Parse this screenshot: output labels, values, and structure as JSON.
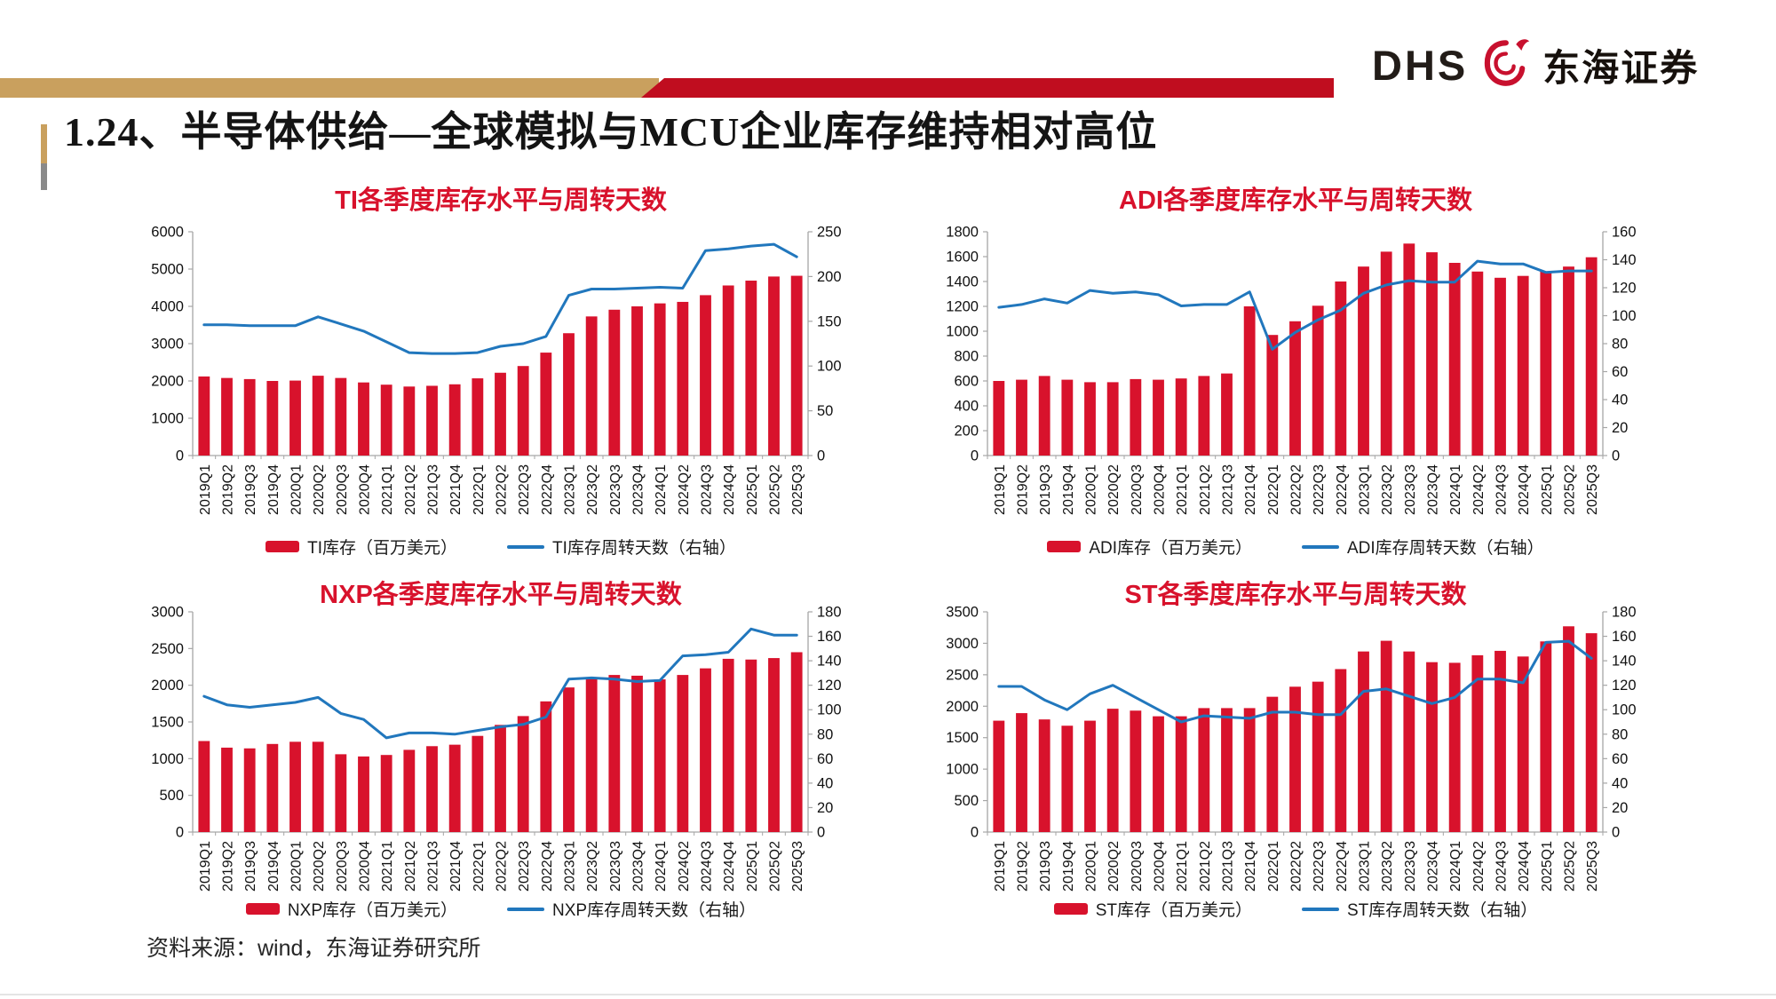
{
  "slide": {
    "title": "1.24、半导体供给—全球模拟与MCU企业库存维持相对高位",
    "footer": "资料来源：wind，东海证券研究所"
  },
  "logo": {
    "dhs": "DHS",
    "cn": "东海证券"
  },
  "colors": {
    "bar_red": "#D8122C",
    "line_blue": "#2177BD",
    "chart_title_red": "#D8122C",
    "band_gold": "#C9A05E",
    "band_red": "#C00D1F",
    "accent_gray": "#8A8A8A",
    "axis_gray": "#A6A6A6",
    "dragon_red": "#C8102E"
  },
  "categories": [
    "2019Q1",
    "2019Q2",
    "2019Q3",
    "2019Q4",
    "2020Q1",
    "2020Q2",
    "2020Q3",
    "2020Q4",
    "2021Q1",
    "2021Q2",
    "2021Q3",
    "2021Q4",
    "2022Q1",
    "2022Q2",
    "2022Q3",
    "2022Q4",
    "2023Q1",
    "2023Q2",
    "2023Q3",
    "2023Q4",
    "2024Q1",
    "2024Q2",
    "2024Q3",
    "2024Q4",
    "2025Q1",
    "2025Q2",
    "2025Q3"
  ],
  "chart_data": [
    {
      "name": "TI",
      "type": "bar+line",
      "title": "TI各季度库存水平与周转天数",
      "legend": {
        "bar": "TI库存（百万美元）",
        "line": "TI库存周转天数（右轴）"
      },
      "left_axis": {
        "min": 0,
        "max": 6000,
        "step": 1000
      },
      "right_axis": {
        "min": 0,
        "max": 250,
        "step": 50
      },
      "bars": [
        2120,
        2080,
        2050,
        2000,
        2010,
        2140,
        2080,
        1960,
        1900,
        1850,
        1870,
        1910,
        2070,
        2220,
        2400,
        2760,
        3280,
        3730,
        3910,
        4000,
        4080,
        4120,
        4300,
        4560,
        4690,
        4800,
        4820
      ],
      "line": [
        146,
        146,
        145,
        145,
        145,
        155,
        147,
        139,
        127,
        115,
        114,
        114,
        115,
        122,
        125,
        133,
        179,
        186,
        186,
        187,
        188,
        187,
        229,
        231,
        234,
        236,
        222
      ]
    },
    {
      "name": "ADI",
      "type": "bar+line",
      "title": "ADI各季度库存水平与周转天数",
      "legend": {
        "bar": "ADI库存（百万美元）",
        "line": "ADI库存周转天数（右轴）"
      },
      "left_axis": {
        "min": 0,
        "max": 1800,
        "step": 200
      },
      "right_axis": {
        "min": 0,
        "max": 160,
        "step": 20
      },
      "bars": [
        600,
        610,
        640,
        610,
        590,
        590,
        615,
        610,
        620,
        640,
        660,
        1200,
        970,
        1080,
        1205,
        1400,
        1520,
        1640,
        1705,
        1635,
        1550,
        1480,
        1430,
        1445,
        1480,
        1520,
        1595
      ],
      "line": [
        106,
        108,
        112,
        109,
        118,
        116,
        117,
        115,
        107,
        108,
        108,
        117,
        76,
        88,
        97,
        104,
        116,
        122,
        125,
        124,
        124,
        139,
        137,
        137,
        131,
        132,
        132
      ]
    },
    {
      "name": "NXP",
      "type": "bar+line",
      "title": "NXP各季度库存水平与周转天数",
      "legend": {
        "bar": "NXP库存（百万美元）",
        "line": "NXP库存周转天数（右轴）"
      },
      "left_axis": {
        "min": 0,
        "max": 3000,
        "step": 500
      },
      "right_axis": {
        "min": 0,
        "max": 180,
        "step": 20
      },
      "bars": [
        1240,
        1150,
        1140,
        1200,
        1230,
        1230,
        1060,
        1030,
        1050,
        1120,
        1170,
        1190,
        1310,
        1460,
        1580,
        1780,
        1970,
        2100,
        2140,
        2130,
        2080,
        2140,
        2230,
        2360,
        2350,
        2370,
        2450
      ],
      "line": [
        111,
        104,
        102,
        104,
        106,
        110,
        97,
        92,
        77,
        81,
        81,
        80,
        83,
        86,
        88,
        94,
        125,
        126,
        125,
        123,
        124,
        144,
        145,
        147,
        166,
        161,
        161
      ]
    },
    {
      "name": "ST",
      "type": "bar+line",
      "title": "ST各季度库存水平与周转天数",
      "legend": {
        "bar": "ST库存（百万美元）",
        "line": "ST库存周转天数（右轴）"
      },
      "left_axis": {
        "min": 0,
        "max": 3500,
        "step": 500
      },
      "right_axis": {
        "min": 0,
        "max": 180,
        "step": 20
      },
      "bars": [
        1770,
        1890,
        1790,
        1690,
        1770,
        1960,
        1930,
        1840,
        1840,
        1970,
        1970,
        1970,
        2150,
        2310,
        2390,
        2590,
        2870,
        3040,
        2870,
        2700,
        2690,
        2810,
        2880,
        2790,
        3030,
        3270,
        3160
      ],
      "line": [
        119,
        119,
        108,
        100,
        113,
        120,
        110,
        100,
        90,
        95,
        94,
        93,
        98,
        98,
        96,
        96,
        115,
        117,
        111,
        105,
        110,
        125,
        125,
        122,
        155,
        156,
        142
      ]
    }
  ]
}
